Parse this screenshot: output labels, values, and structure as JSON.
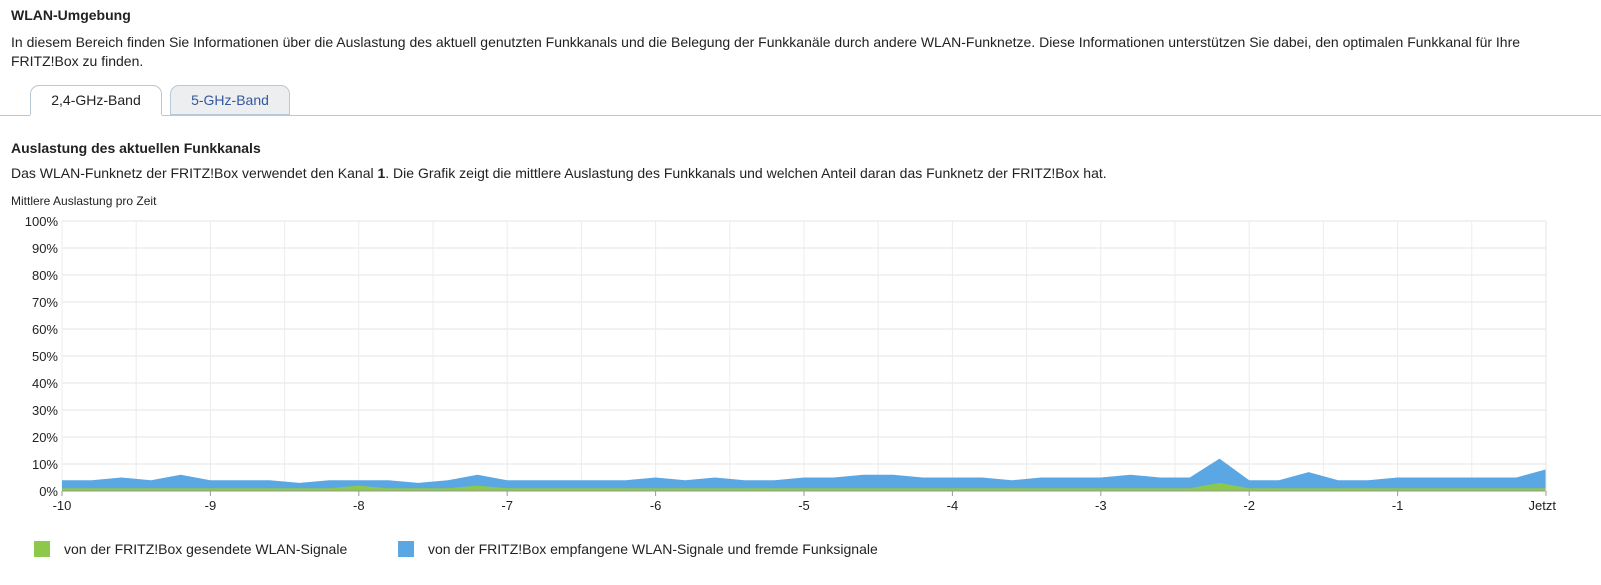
{
  "header": {
    "title": "WLAN-Umgebung",
    "intro": "In diesem Bereich finden Sie Informationen über die Auslastung des aktuell genutzten Funkkanals und die Belegung der Funkkanäle durch andere WLAN-Funknetze. Diese Informationen unterstützen Sie dabei, den optimalen Funkkanal für Ihre FRITZ!Box zu finden."
  },
  "tabs": [
    {
      "label": "2,4-GHz-Band",
      "active": true
    },
    {
      "label": "5-GHz-Band",
      "active": false
    }
  ],
  "section": {
    "title": "Auslastung des aktuellen Funkkanals",
    "desc_prefix": "Das WLAN-Funknetz der FRITZ!Box verwendet den Kanal ",
    "channel": "1",
    "desc_suffix": ". Die Grafik zeigt die mittlere Auslastung des Funkkanals und welchen Anteil daran das Funknetz der FRITZ!Box hat."
  },
  "chart_data": {
    "type": "area",
    "title": "Mittlere Auslastung pro Zeit",
    "x_ticks": [
      "-10",
      "-9",
      "-8",
      "-7",
      "-6",
      "-5",
      "-4",
      "-3",
      "-2",
      "-1",
      "Jetzt"
    ],
    "xlim": [
      -10,
      0
    ],
    "ylim": [
      0,
      100
    ],
    "y_ticks": [
      "0%",
      "10%",
      "20%",
      "30%",
      "40%",
      "50%",
      "60%",
      "70%",
      "80%",
      "90%",
      "100%"
    ],
    "grid": true,
    "x": [
      -10,
      -9.8,
      -9.6,
      -9.4,
      -9.2,
      -9.0,
      -8.8,
      -8.6,
      -8.4,
      -8.2,
      -8.0,
      -7.8,
      -7.6,
      -7.4,
      -7.2,
      -7.0,
      -6.8,
      -6.6,
      -6.4,
      -6.2,
      -6.0,
      -5.8,
      -5.6,
      -5.4,
      -5.2,
      -5.0,
      -4.8,
      -4.6,
      -4.4,
      -4.2,
      -4.0,
      -3.8,
      -3.6,
      -3.4,
      -3.2,
      -3.0,
      -2.8,
      -2.6,
      -2.4,
      -2.2,
      -2.0,
      -1.8,
      -1.6,
      -1.4,
      -1.2,
      -1.0,
      -0.8,
      -0.6,
      -0.4,
      -0.2,
      0
    ],
    "series": [
      {
        "name": "von der FRITZ!Box empfangene WLAN-Signale und fremde Funksignale",
        "color": "#5ba7e3",
        "values": [
          4,
          4,
          5,
          4,
          6,
          4,
          4,
          4,
          3,
          4,
          4,
          4,
          3,
          4,
          6,
          4,
          4,
          4,
          4,
          4,
          5,
          4,
          5,
          4,
          4,
          5,
          5,
          6,
          6,
          5,
          5,
          5,
          4,
          5,
          5,
          5,
          6,
          5,
          5,
          12,
          4,
          4,
          7,
          4,
          4,
          5,
          5,
          5,
          5,
          5,
          8
        ]
      },
      {
        "name": "von der FRITZ!Box gesendete WLAN-Signale",
        "color": "#8cc84b",
        "values": [
          1,
          1,
          1,
          1,
          1,
          1,
          1,
          1,
          1,
          1,
          2,
          1,
          1,
          1,
          2,
          1,
          1,
          1,
          1,
          1,
          1,
          1,
          1,
          1,
          1,
          1,
          1,
          1,
          1,
          1,
          1,
          1,
          1,
          1,
          1,
          1,
          1,
          1,
          1,
          3,
          1,
          1,
          1,
          1,
          1,
          1,
          1,
          1,
          1,
          1,
          1
        ]
      }
    ],
    "legend": "bottom-left"
  }
}
